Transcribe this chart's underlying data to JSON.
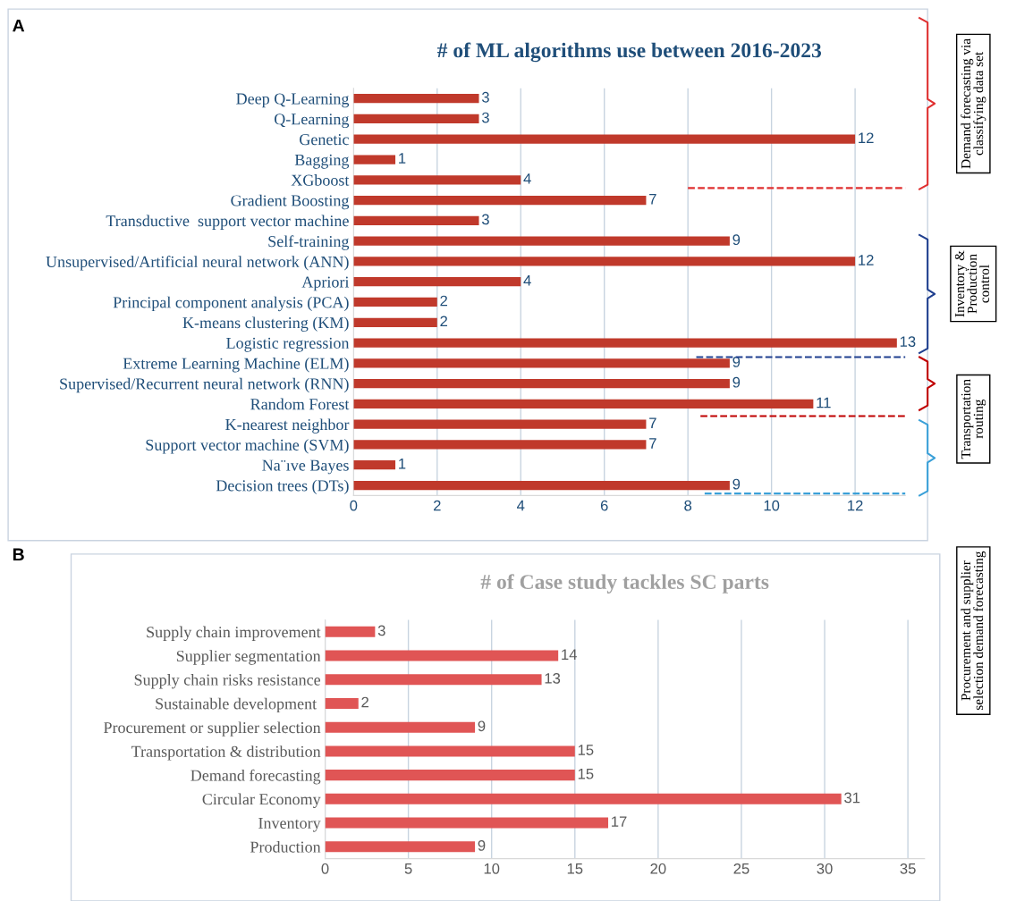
{
  "chart_data": [
    {
      "type": "bar",
      "orientation": "horizontal",
      "title": "# of ML algorithms use between 2016-2023",
      "categories": [
        "Deep Q-Learning",
        "Q-Learning",
        "Genetic",
        "Bagging",
        "XGboost",
        "Gradient Boosting",
        "Transductive  support vector machine",
        "Self-training",
        "Unsupervised/Artificial neural network (ANN)",
        "Apriori",
        "Principal component analysis (PCA)",
        "K-means clustering (KM)",
        "Logistic regression",
        "Extreme Learning Machine (ELM)",
        "Supervised/Recurrent neural network (RNN)",
        "Random Forest",
        "K-nearest neighbor",
        "Support vector machine (SVM)",
        "Na¨ıve Bayes",
        "Decision trees (DTs)"
      ],
      "values": [
        3,
        3,
        12,
        1,
        4,
        7,
        3,
        9,
        12,
        4,
        2,
        2,
        13,
        9,
        9,
        11,
        7,
        7,
        1,
        9
      ],
      "color": "#c0392b",
      "xlim": [
        0,
        13.2
      ],
      "xticks": [
        0,
        2,
        4,
        6,
        8,
        10,
        12
      ],
      "grid": "x",
      "data_labels": true,
      "annotations": [
        "A",
        "Demand forecasting via classifying data set",
        "Inventory & Production control",
        "Transportation routing",
        "Procurement and supplier selection demand forecasting"
      ]
    },
    {
      "type": "bar",
      "orientation": "horizontal",
      "title": "# of Case study tackles SC parts",
      "categories": [
        "Supply chain improvement",
        "Supplier segmentation",
        "Supply chain risks resistance",
        "Sustainable development ",
        "Procurement or supplier selection",
        "Transportation & distribution",
        "Demand forecasting",
        "Circular Economy",
        "Inventory",
        "Production"
      ],
      "values": [
        3,
        14,
        13,
        2,
        9,
        15,
        15,
        31,
        17,
        9
      ],
      "color": "#e05555",
      "xlim": [
        0,
        36
      ],
      "xticks": [
        0,
        5,
        10,
        15,
        20,
        25,
        30,
        35
      ],
      "grid": "x",
      "data_labels": true,
      "annotations": [
        "B"
      ]
    }
  ]
}
